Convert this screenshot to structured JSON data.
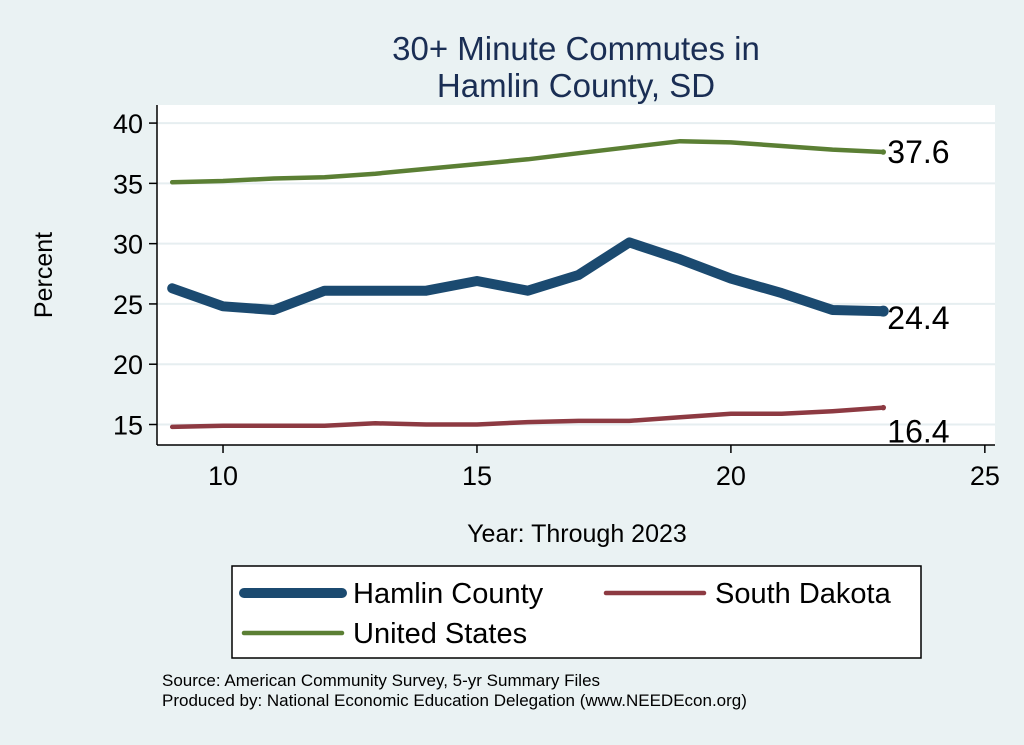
{
  "chart_data": {
    "type": "line",
    "title": [
      "30+ Minute Commutes in",
      "Hamlin County, SD"
    ],
    "xlabel": "Year: Through 2023",
    "ylabel": "Percent",
    "xlim": [
      8.7,
      25.2
    ],
    "ylim": [
      13.3,
      41.5
    ],
    "xticks": [
      10,
      15,
      20,
      25
    ],
    "yticks": [
      15,
      20,
      25,
      30,
      35,
      40
    ],
    "grid": true,
    "legend_position": "bottom",
    "x": [
      9,
      10,
      11,
      12,
      13,
      14,
      15,
      16,
      17,
      18,
      19,
      20,
      21,
      22,
      23
    ],
    "series": [
      {
        "name": "Hamlin County",
        "color": "#1b4a70",
        "width": 10,
        "values": [
          26.3,
          24.8,
          24.5,
          26.1,
          26.1,
          26.1,
          26.9,
          26.1,
          27.4,
          30.1,
          28.7,
          27.1,
          25.9,
          24.5,
          24.4
        ],
        "end_label": "24.4"
      },
      {
        "name": "South Dakota",
        "color": "#8d3a42",
        "width": 4.5,
        "values": [
          14.8,
          14.9,
          14.9,
          14.9,
          15.1,
          15.0,
          15.0,
          15.2,
          15.3,
          15.3,
          15.6,
          15.9,
          15.9,
          16.1,
          16.4
        ],
        "end_label": "16.4"
      },
      {
        "name": "United States",
        "color": "#5b7f34",
        "width": 4.5,
        "values": [
          35.1,
          35.2,
          35.4,
          35.5,
          35.8,
          36.2,
          36.6,
          37.0,
          37.5,
          38.0,
          38.5,
          38.4,
          38.1,
          37.8,
          37.6
        ],
        "end_label": "37.6"
      }
    ]
  },
  "footer": {
    "source": "Source: American Community Survey, 5-yr Summary Files",
    "produced": "Produced by: National Economic Education Delegation (www.NEEDEcon.org)"
  }
}
